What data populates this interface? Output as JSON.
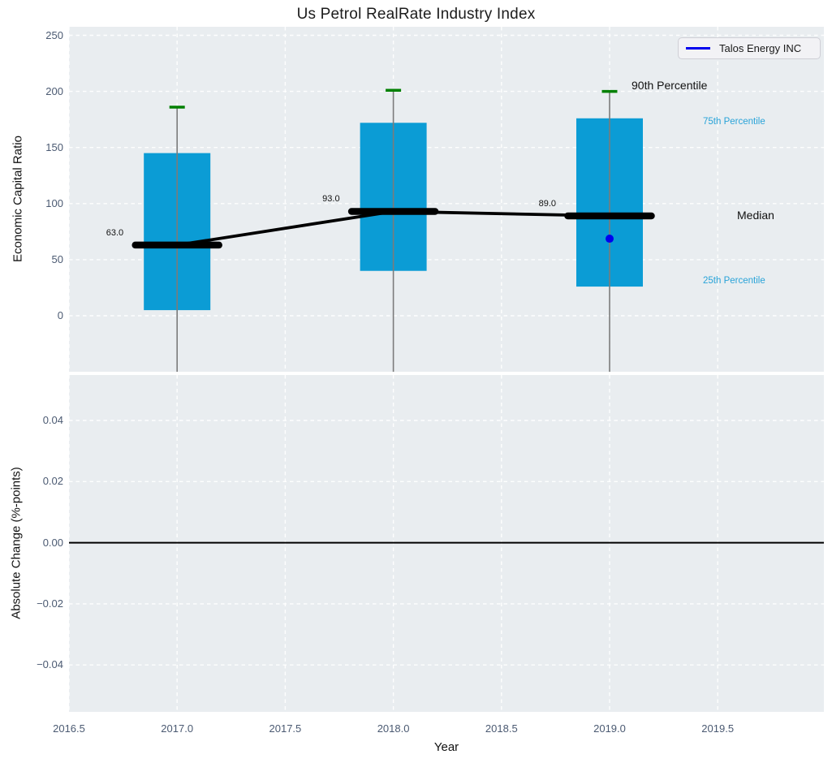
{
  "chart_data": {
    "type": "boxplot-timeseries",
    "title": "Us Petrol RealRate Industry Index",
    "xlabel": "Year",
    "ylabel_top": "Economic Capital Ratio",
    "ylabel_bottom": "Absolute Change (%-points)",
    "x_ticks": [
      2016.5,
      2017.0,
      2017.5,
      2018.0,
      2018.5,
      2019.0,
      2019.5
    ],
    "xlim": [
      2016.5,
      2020.0
    ],
    "y_top": {
      "ticks": [
        0,
        50,
        100,
        150,
        200,
        250
      ],
      "lim": [
        -50,
        258
      ],
      "grid": true
    },
    "y_bottom": {
      "ticks": [
        -0.04,
        -0.02,
        0.0,
        0.02,
        0.04
      ],
      "lim": [
        -0.055,
        0.055
      ],
      "zero_line": 0.0,
      "grid": true
    },
    "boxes": [
      {
        "year": 2017,
        "p90": 186,
        "p75": 145,
        "median": 63.0,
        "p25": 5,
        "median_label": "63.0"
      },
      {
        "year": 2018,
        "p90": 201,
        "p75": 172,
        "median": 93.0,
        "p25": 40,
        "median_label": "93.0"
      },
      {
        "year": 2019,
        "p90": 200,
        "p75": 176,
        "median": 89.0,
        "p25": 26,
        "median_label": "89.0"
      }
    ],
    "company_series": {
      "name": "Talos Energy INC",
      "points": [
        {
          "year": 2019,
          "value": 68.7
        }
      ]
    },
    "legend": {
      "label": "Talos Energy INC",
      "position": "top-right"
    },
    "annotations": {
      "p90": "90th Percentile",
      "p75": "75th Percentile",
      "median": "Median",
      "p25": "25th Percentile"
    },
    "colors": {
      "box": "#0B9CD5",
      "whisker_cap": "#008000",
      "whisker_line": "#7B7B7B",
      "median": "#000000",
      "company": "#0000EE",
      "percentile_text": "#28A3D8",
      "axes_bg": "#E9EDF0",
      "tick_text": "#4B5A72",
      "grid": "#FFFFFF"
    }
  }
}
